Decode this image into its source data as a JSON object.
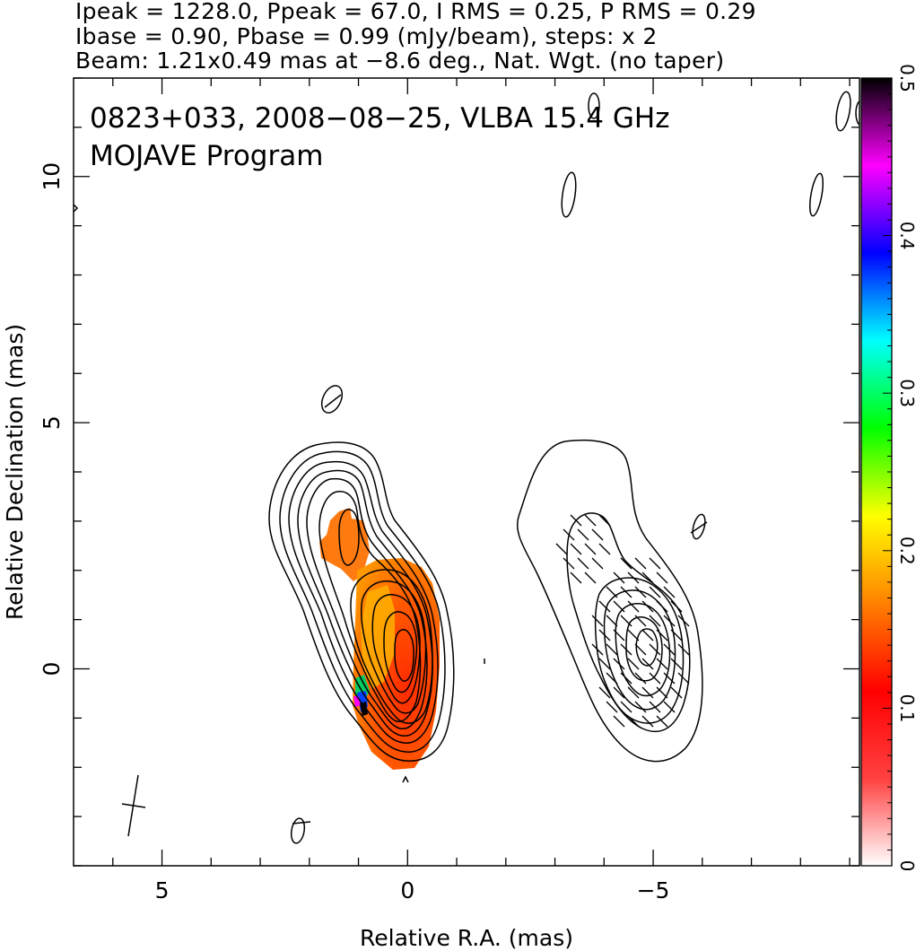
{
  "header": {
    "line1": "Ipeak = 1228.0, Ppeak = 67.0, I RMS = 0.25, P RMS = 0.29",
    "line2": "Ibase = 0.90, Pbase = 0.99 (mJy/beam), steps: x 2",
    "line3": "Beam: 1.21x0.49 mas at −8.6 deg., Nat. Wgt. (no taper)"
  },
  "chart_data": {
    "type": "heatmap",
    "title": "",
    "annotations": [
      "0823+033, 2008−08−25, VLBA 15.4 GHz",
      "MOJAVE Program"
    ],
    "xlabel": "Relative R.A. (mas)",
    "ylabel": "Relative Declination (mas)",
    "xlim": [
      6.8,
      -9.2
    ],
    "ylim": [
      -4.0,
      12.0
    ],
    "xticks": [
      5,
      0,
      -5
    ],
    "xtick_labels": [
      "5",
      "0",
      "−5"
    ],
    "yticks": [
      0,
      5,
      10
    ],
    "ytick_labels": [
      "0",
      "5",
      "10"
    ],
    "colorbar": {
      "range": [
        0,
        0.5
      ],
      "ticks": [
        0,
        0.1,
        0.2,
        0.3,
        0.4,
        0.5
      ],
      "tick_labels": [
        "0",
        "0.1",
        "0.2",
        "0.3",
        "0.4",
        "0.5"
      ],
      "colors": [
        "#ffffff",
        "#ff4040",
        "#ff0000",
        "#ff8000",
        "#ffff00",
        "#00ff00",
        "#00ffff",
        "#0000ff",
        "#ff00ff",
        "#000000"
      ]
    },
    "panels": [
      {
        "name": "",
        "center_ra": 0.0,
        "center_dec": 0.0,
        "kind": "total-intensity",
        "fractional_pol_colored": true
      },
      {
        "name": "",
        "center_ra": -5.0,
        "center_dec": 0.0,
        "kind": "polarized-intensity",
        "evpa_ticks": true
      }
    ],
    "beam": {
      "major_mas": 1.21,
      "minor_mas": 0.49,
      "pa_deg": -8.6
    },
    "grid": false
  }
}
